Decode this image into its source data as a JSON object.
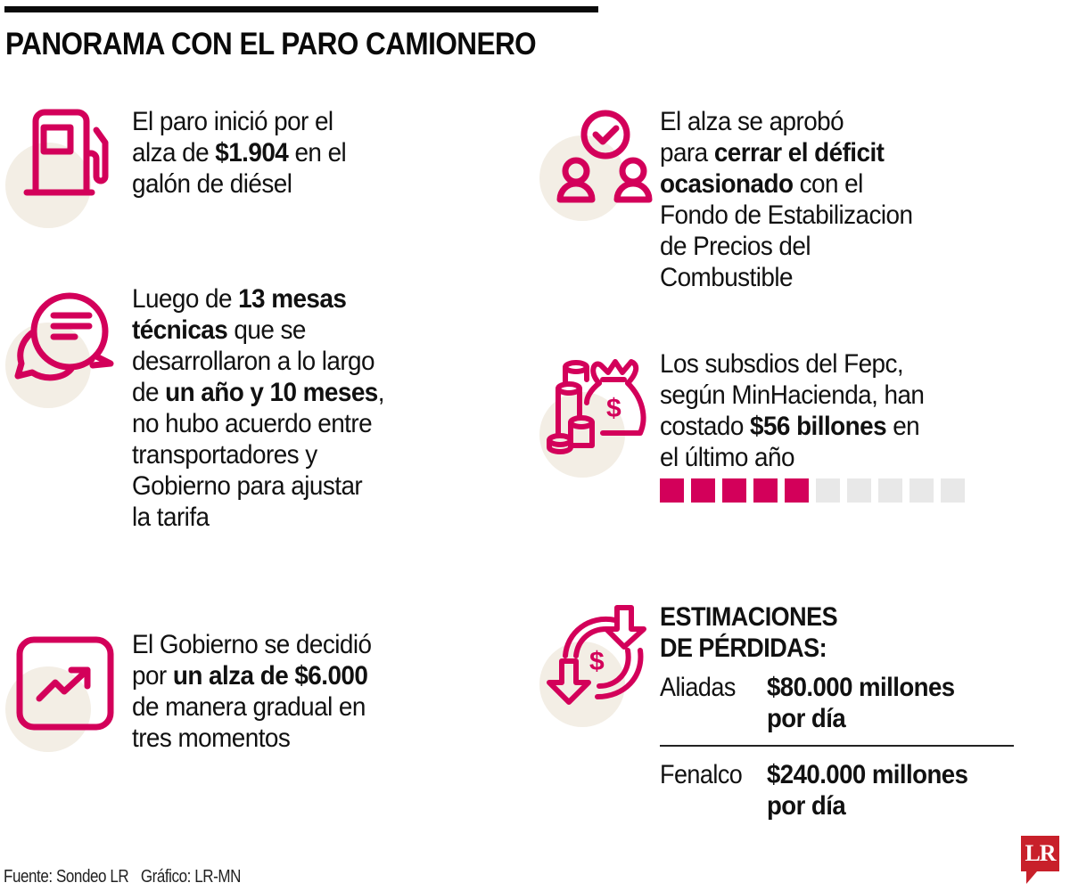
{
  "title": "PANORAMA CON EL PARO CAMIONERO",
  "colors": {
    "accent": "#d3005a",
    "icon_bg": "#f3eee5",
    "square_empty": "#e8e8e8",
    "logo_red": "#c8202a",
    "text": "#111111"
  },
  "items": [
    {
      "icon": "fuel-pump-icon",
      "lines": [
        [
          {
            "t": "El paro inició por el",
            "b": false
          }
        ],
        [
          {
            "t": "alza de ",
            "b": false
          },
          {
            "t": "$1.904",
            "b": true
          },
          {
            "t": " en el",
            "b": false
          }
        ],
        [
          {
            "t": "galón de diésel",
            "b": false
          }
        ]
      ]
    },
    {
      "icon": "chat-bubbles-icon",
      "lines": [
        [
          {
            "t": "Luego de ",
            "b": false
          },
          {
            "t": "13 mesas",
            "b": true
          }
        ],
        [
          {
            "t": "técnicas",
            "b": true
          },
          {
            "t": " que se",
            "b": false
          }
        ],
        [
          {
            "t": "desarrollaron a lo largo",
            "b": false
          }
        ],
        [
          {
            "t": "de ",
            "b": false
          },
          {
            "t": "un año y 10 meses",
            "b": true
          },
          {
            "t": ",",
            "b": false
          }
        ],
        [
          {
            "t": "no hubo acuerdo entre",
            "b": false
          }
        ],
        [
          {
            "t": "transportadores y",
            "b": false
          }
        ],
        [
          {
            "t": "Gobierno para ajustar",
            "b": false
          }
        ],
        [
          {
            "t": "la tarifa",
            "b": false
          }
        ]
      ]
    },
    {
      "icon": "trending-up-icon",
      "lines": [
        [
          {
            "t": "El Gobierno se decidió",
            "b": false
          }
        ],
        [
          {
            "t": "por ",
            "b": false
          },
          {
            "t": "un alza de $6.000",
            "b": true
          }
        ],
        [
          {
            "t": "de manera gradual en",
            "b": false
          }
        ],
        [
          {
            "t": "tres momentos",
            "b": false
          }
        ]
      ]
    },
    {
      "icon": "users-approved-icon",
      "lines": [
        [
          {
            "t": "El alza se aprobó",
            "b": false
          }
        ],
        [
          {
            "t": "para ",
            "b": false
          },
          {
            "t": "cerrar el déficit",
            "b": true
          }
        ],
        [
          {
            "t": "ocasionado",
            "b": true
          },
          {
            "t": " con el",
            "b": false
          }
        ],
        [
          {
            "t": "Fondo de Estabilizacion",
            "b": false
          }
        ],
        [
          {
            "t": "de Precios del",
            "b": false
          }
        ],
        [
          {
            "t": "Combustible",
            "b": false
          }
        ]
      ]
    },
    {
      "icon": "money-bag-coins-icon",
      "lines": [
        [
          {
            "t": "Los subsdios del Fepc,",
            "b": false
          }
        ],
        [
          {
            "t": "según MinHacienda, han",
            "b": false
          }
        ],
        [
          {
            "t": "costado ",
            "b": false
          },
          {
            "t": "$56 billones",
            "b": true
          },
          {
            "t": " en",
            "b": false
          }
        ],
        [
          {
            "t": "el último año",
            "b": false
          }
        ]
      ]
    }
  ],
  "squares": {
    "total": 10,
    "filled": 5
  },
  "estimates": {
    "icon": "money-loss-arrows-icon",
    "heading_line1": "ESTIMACIONES",
    "heading_line2": "DE PÉRDIDAS:",
    "rows": [
      {
        "label": "Aliadas",
        "value_line1": "$80.000 millones",
        "value_line2": "por día"
      },
      {
        "label": "Fenalco",
        "value_line1": "$240.000 millones",
        "value_line2": "por día"
      }
    ]
  },
  "footer": {
    "source": "Fuente: Sondeo LR",
    "graphic": "Gráfico: LR-MN"
  },
  "logo": {
    "text": "LR"
  }
}
